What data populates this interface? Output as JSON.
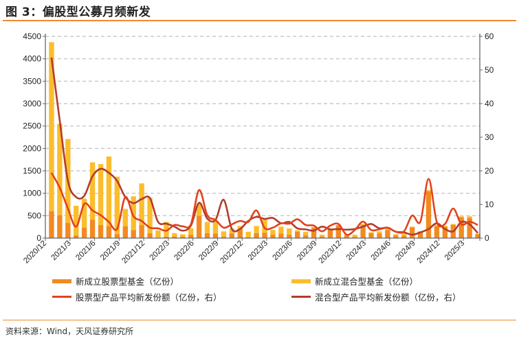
{
  "title": "图 3：偏股型公募月频新发",
  "source": "资料来源：Wind，天风证券研究所",
  "colors": {
    "equity_bar": "#f28a22",
    "hybrid_bar": "#fbbd2c",
    "equity_line": "#e2421c",
    "hybrid_line": "#b13c2c",
    "accent": "#f08a2c"
  },
  "chart_data": {
    "type": "bar+line",
    "title": "偏股型公募月频新发",
    "categories": [
      "2020/12",
      "2021/1",
      "2021/2",
      "2021/3",
      "2021/4",
      "2021/5",
      "2021/6",
      "2021/7",
      "2021/8",
      "2021/9",
      "2021/10",
      "2021/11",
      "2021/12",
      "2022/1",
      "2022/2",
      "2022/3",
      "2022/4",
      "2022/5",
      "2022/6",
      "2022/7",
      "2022/8",
      "2022/9",
      "2022/10",
      "2022/11",
      "2022/12",
      "2023/1",
      "2023/2",
      "2023/3",
      "2023/4",
      "2023/5",
      "2023/6",
      "2023/7",
      "2023/8",
      "2023/9",
      "2023/10",
      "2023/11",
      "2023/12",
      "2024/1",
      "2024/2",
      "2024/3",
      "2024/4",
      "2024/5",
      "2024/6",
      "2024/7",
      "2024/8",
      "2024/9",
      "2024/10",
      "2024/11",
      "2024/12",
      "2025/1",
      "2025/2",
      "2025/3",
      "2025/4"
    ],
    "x_tick_labels": [
      "2020/12",
      "2021/3",
      "2021/6",
      "2021/9",
      "2021/12",
      "2022/3",
      "2022/6",
      "2022/9",
      "2022/12",
      "2023/3",
      "2023/6",
      "2023/9",
      "2023/12",
      "2024/3",
      "2024/6",
      "2024/9",
      "2024/12",
      "2025/3"
    ],
    "y_left": {
      "ylim": [
        0,
        4500
      ],
      "ticks": [
        0,
        500,
        1000,
        1500,
        2000,
        2500,
        3000,
        3500,
        4000,
        4500
      ]
    },
    "y_right": {
      "ylim": [
        0,
        60
      ],
      "ticks": [
        0,
        10,
        20,
        30,
        40,
        50,
        60
      ]
    },
    "grid": true,
    "legend_position": "bottom",
    "series": [
      {
        "name": "新成立股票型基金（亿份）",
        "type": "bar",
        "axis": "left",
        "stack": true,
        "color": "#f28a22",
        "values": [
          600,
          510,
          340,
          60,
          230,
          410,
          290,
          270,
          90,
          260,
          180,
          290,
          110,
          10,
          30,
          35,
          30,
          70,
          495,
          110,
          100,
          30,
          100,
          205,
          15,
          110,
          115,
          75,
          100,
          75,
          140,
          60,
          230,
          35,
          195,
          285,
          50,
          25,
          295,
          110,
          100,
          180,
          60,
          50,
          240,
          140,
          1045,
          265,
          245,
          295,
          460,
          450,
          85
        ]
      },
      {
        "name": "新成立混合型基金（亿份）",
        "type": "bar",
        "axis": "left",
        "stack": true,
        "color": "#fbbd2c",
        "values": [
          3770,
          2040,
          1870,
          660,
          650,
          1280,
          1360,
          1550,
          1280,
          390,
          750,
          930,
          790,
          160,
          330,
          75,
          55,
          150,
          275,
          250,
          290,
          120,
          110,
          65,
          125,
          160,
          295,
          105,
          155,
          140,
          35,
          80,
          15,
          40,
          10,
          10,
          25,
          50,
          20,
          20,
          50,
          65,
          25,
          50,
          15,
          15,
          25,
          30,
          30,
          20,
          25,
          35,
          15
        ]
      },
      {
        "name": "股票型产品平均新发份额（亿份，右）",
        "type": "line",
        "axis": "right",
        "color": "#e2421c",
        "values": [
          19.4,
          15,
          8.8,
          3.4,
          10.2,
          8.2,
          6.8,
          4.8,
          2.7,
          12.2,
          6.5,
          5.1,
          3.1,
          2.9,
          2.2,
          3.9,
          3.5,
          4.1,
          14.3,
          6.8,
          5.4,
          3.1,
          4.1,
          5.1,
          4.8,
          8.2,
          3.0,
          3.1,
          4.4,
          4.3,
          5.6,
          3.9,
          3.7,
          2.0,
          3.7,
          4.2,
          1.0,
          2.4,
          4.9,
          2.4,
          2.6,
          3.1,
          1.9,
          2.0,
          6.7,
          4.9,
          17.6,
          4.8,
          4.2,
          8.8,
          4.1,
          4.9,
          3.9
        ]
      },
      {
        "name": "混合型产品平均新发份额（亿份，右）",
        "type": "line",
        "axis": "right",
        "color": "#b13c2c",
        "values": [
          53.7,
          35,
          17,
          12.2,
          12.6,
          18.4,
          20.6,
          19.4,
          17,
          12.2,
          10.4,
          11.6,
          11.9,
          4.8,
          4.3,
          3.4,
          2.2,
          3.7,
          10.5,
          5.8,
          5.4,
          11.4,
          2.7,
          2.7,
          5.1,
          6.3,
          5.7,
          6.0,
          4.4,
          4.8,
          2.9,
          2.6,
          2.2,
          3.4,
          2.6,
          2.7,
          2.5,
          2.7,
          3.4,
          4.2,
          2.9,
          3.1,
          1.9,
          1.7,
          1.0,
          1.7,
          2.7,
          4.4,
          2.7,
          2.0,
          4.8,
          4.1,
          1.5
        ]
      }
    ]
  }
}
